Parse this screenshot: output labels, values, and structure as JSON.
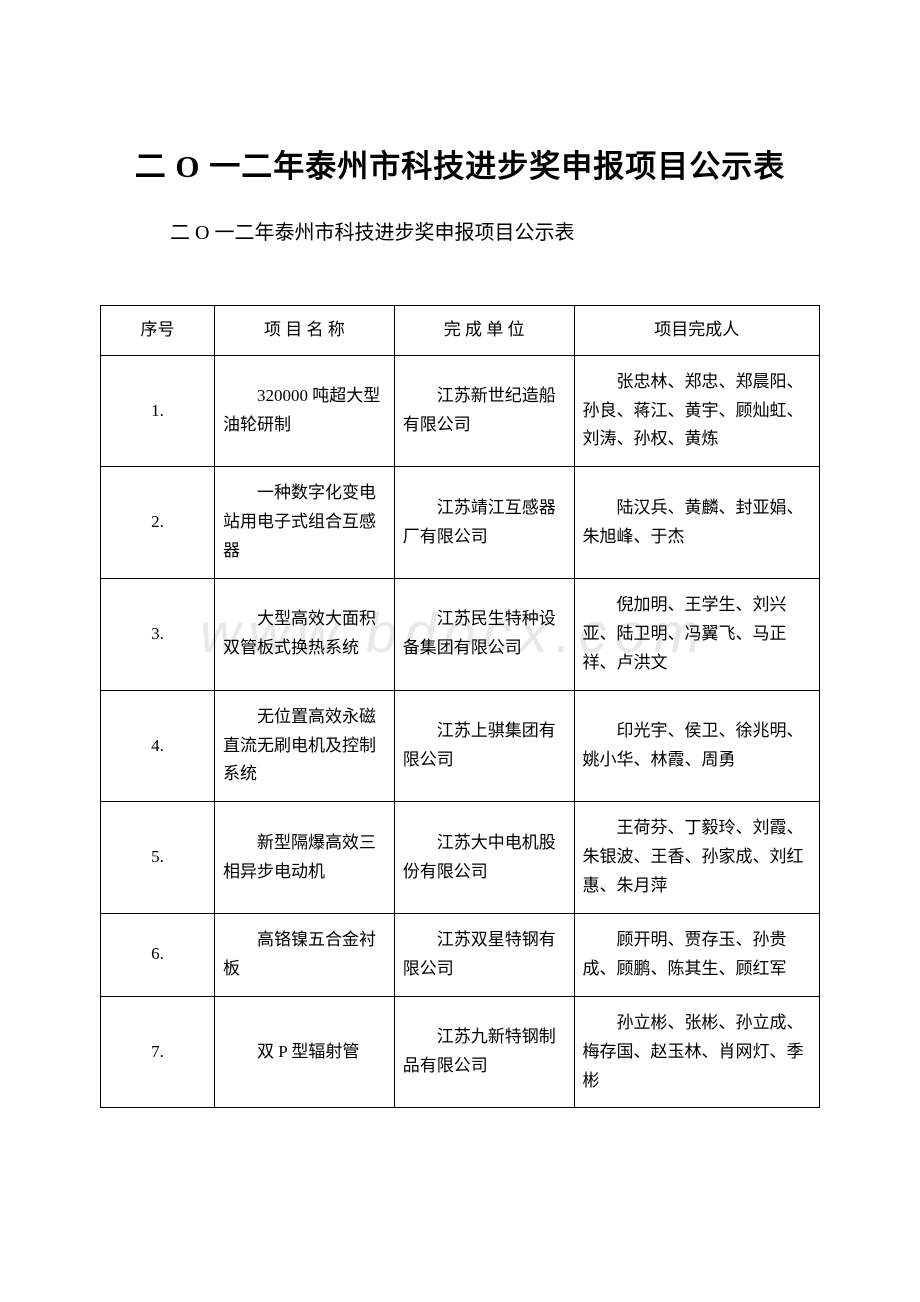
{
  "document": {
    "main_title": "二 O 一二年泰州市科技进步奖申报项目公示表",
    "sub_title": "二 O 一二年泰州市科技进步奖申报项目公示表",
    "watermark": "www.bdocx.com"
  },
  "table": {
    "headers": {
      "seq": "序号",
      "name": "项 目 名 称",
      "unit": "完 成 单 位",
      "person": "项目完成人"
    },
    "rows": [
      {
        "seq": "1.",
        "name": "320000 吨超大型油轮研制",
        "unit": "江苏新世纪造船有限公司",
        "person": "张忠林、郑忠、郑晨阳、孙良、蒋江、黄宇、顾灿虹、刘涛、孙权、黄炼"
      },
      {
        "seq": "2.",
        "name": "一种数字化变电站用电子式组合互感器",
        "unit": "江苏靖江互感器厂有限公司",
        "person": "陆汉兵、黄麟、封亚娟、朱旭峰、于杰"
      },
      {
        "seq": "3.",
        "name": "大型高效大面积双管板式换热系统",
        "unit": "江苏民生特种设备集团有限公司",
        "person": "倪加明、王学生、刘兴亚、陆卫明、冯翼飞、马正祥、卢洪文"
      },
      {
        "seq": "4.",
        "name": "无位置高效永磁直流无刷电机及控制系统",
        "unit": "江苏上骐集团有限公司",
        "person": "印光宇、侯卫、徐兆明、姚小华、林霞、周勇"
      },
      {
        "seq": "5.",
        "name": "新型隔爆高效三相异步电动机",
        "unit": "江苏大中电机股份有限公司",
        "person": "王荷芬、丁毅玲、刘霞、朱银波、王香、孙家成、刘红惠、朱月萍"
      },
      {
        "seq": "6.",
        "name": "高铬镍五合金衬板",
        "unit": "江苏双星特钢有限公司",
        "person": "顾开明、贾存玉、孙贵成、顾鹏、陈其生、顾红军"
      },
      {
        "seq": "7.",
        "name": "双 P 型辐射管",
        "unit": "江苏九新特钢制品有限公司",
        "person": "孙立彬、张彬、孙立成、梅存国、赵玉林、肖网灯、季彬"
      }
    ]
  },
  "styling": {
    "background_color": "#ffffff",
    "border_color": "#000000",
    "text_color": "#000000",
    "watermark_color": "#e8e8e8",
    "main_title_fontsize": 31,
    "sub_title_fontsize": 20,
    "cell_fontsize": 17
  }
}
